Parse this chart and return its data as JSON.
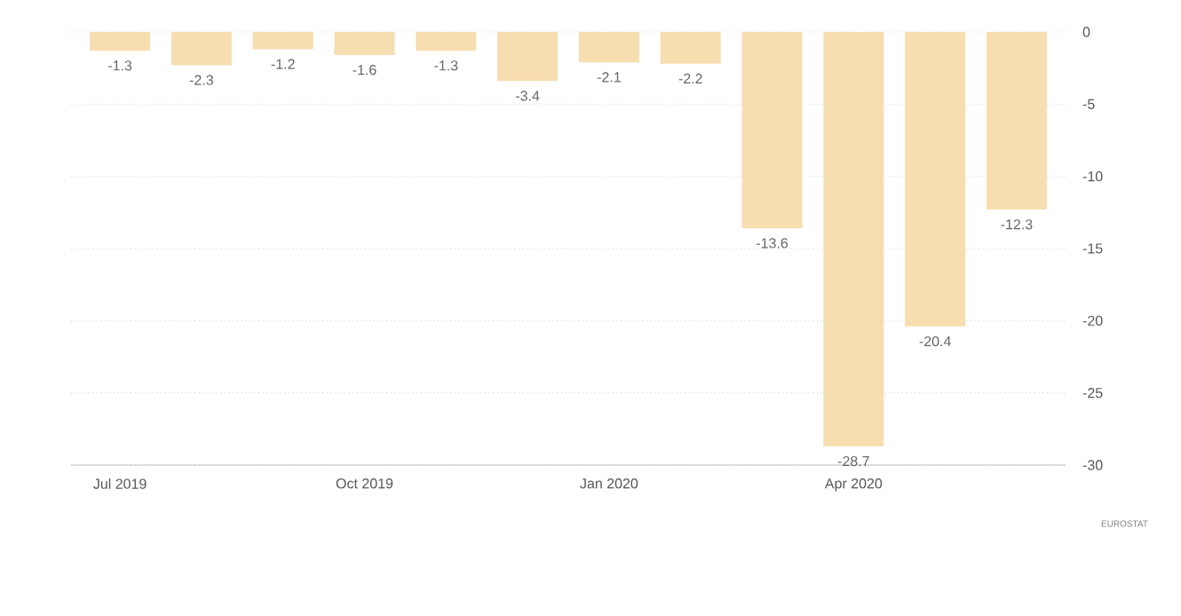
{
  "chart_data": {
    "type": "bar",
    "categories": [
      "Jul 2019",
      null,
      null,
      "Oct 2019",
      null,
      null,
      "Jan 2020",
      null,
      null,
      "Apr 2020",
      null,
      null
    ],
    "values": [
      -1.3,
      -2.3,
      -1.2,
      -1.6,
      -1.3,
      -3.4,
      -2.1,
      -2.2,
      -13.6,
      -28.7,
      -20.4,
      -12.3
    ],
    "color": "#f7deb0",
    "ylim": [
      -30,
      0
    ],
    "yticks": [
      -30,
      -25,
      -20,
      -15,
      -10,
      -5,
      0
    ],
    "grid": "y",
    "data_labels": true,
    "annotations": [
      "EUROSTAT"
    ]
  }
}
